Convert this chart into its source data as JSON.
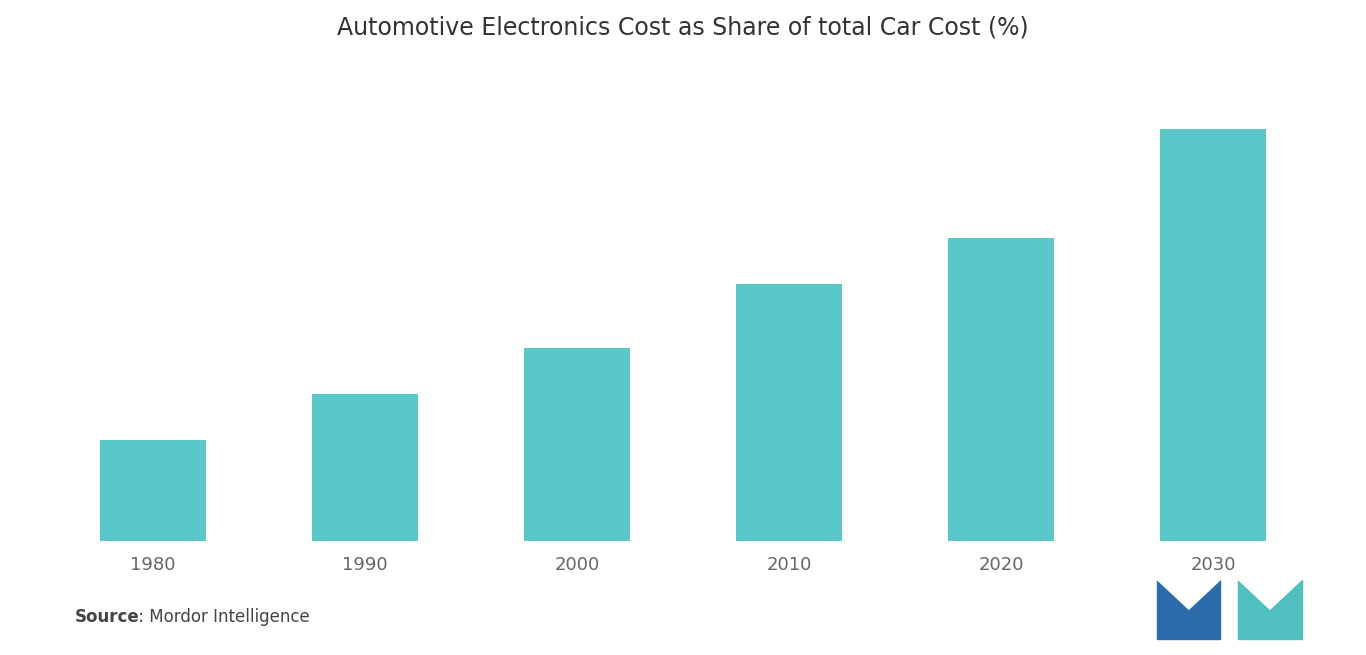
{
  "title": "Automotive Electronics Cost as Share of total Car Cost (%)",
  "categories": [
    "1980",
    "1990",
    "2000",
    "2010",
    "2020",
    "2030"
  ],
  "values": [
    11,
    16,
    21,
    28,
    33,
    45
  ],
  "bar_color": "#5AC8C8",
  "background_color": "#ffffff",
  "title_fontsize": 17,
  "tick_fontsize": 13,
  "bar_width": 0.5,
  "ylim_max": 52,
  "source_bold": "Source",
  "source_rest": " : Mordor Intelligence",
  "logo_blue": "#2B6BAA",
  "logo_teal": "#4FBFBF"
}
